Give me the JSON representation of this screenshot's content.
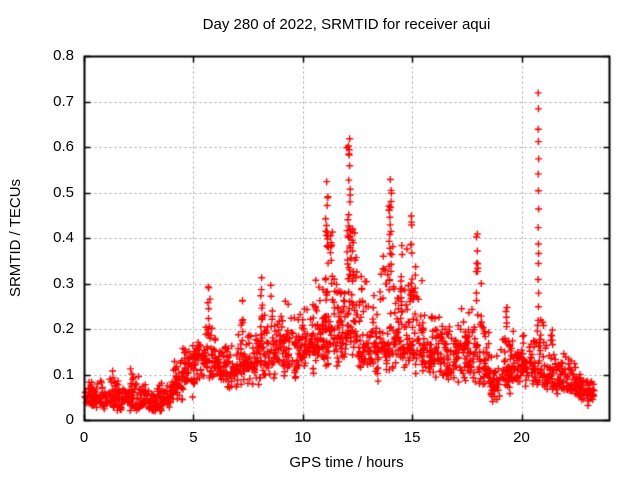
{
  "chart_data": {
    "type": "scatter",
    "title": "Day 280 of 2022, SRMTID for receiver aqui",
    "xlabel": "GPS time / hours",
    "ylabel": "SRMTID / TECUs",
    "xlim": [
      0,
      24
    ],
    "ylim": [
      0,
      0.8
    ],
    "xticks": [
      [
        0,
        "0"
      ],
      [
        5,
        "5"
      ],
      [
        10,
        "10"
      ],
      [
        15,
        "15"
      ],
      [
        20,
        "20"
      ]
    ],
    "yticks": [
      [
        0,
        "0"
      ],
      [
        0.1,
        "0.1"
      ],
      [
        0.2,
        "0.2"
      ],
      [
        0.3,
        "0.3"
      ],
      [
        0.4,
        "0.4"
      ],
      [
        0.5,
        "0.5"
      ],
      [
        0.6,
        "0.6"
      ],
      [
        0.7,
        "0.7"
      ],
      [
        0.8,
        "0.8"
      ]
    ],
    "grid": true,
    "legend": "none",
    "marker": "plus",
    "colors": {
      "marker": "#ff0000",
      "grid": "#a0a0a0",
      "frame": "#000000",
      "text": "#000000",
      "background": "#ffffff"
    },
    "scatter_model": {
      "bands": [
        [
          0.0,
          0.5,
          40,
          0.025,
          0.1,
          0.055
        ],
        [
          0.5,
          1.0,
          40,
          0.02,
          0.09,
          0.05
        ],
        [
          1.0,
          1.5,
          40,
          0.025,
          0.125,
          0.06
        ],
        [
          1.5,
          2.0,
          40,
          0.02,
          0.1,
          0.05
        ],
        [
          2.0,
          2.5,
          40,
          0.02,
          0.12,
          0.055
        ],
        [
          2.5,
          3.0,
          40,
          0.02,
          0.09,
          0.045
        ],
        [
          3.0,
          3.5,
          38,
          0.015,
          0.08,
          0.04
        ],
        [
          3.5,
          4.0,
          38,
          0.015,
          0.09,
          0.045
        ],
        [
          4.0,
          4.5,
          40,
          0.03,
          0.14,
          0.08
        ],
        [
          4.5,
          5.0,
          40,
          0.05,
          0.17,
          0.12
        ],
        [
          5.0,
          5.5,
          42,
          0.07,
          0.19,
          0.13
        ],
        [
          5.5,
          6.0,
          42,
          0.08,
          0.22,
          0.14
        ],
        [
          6.0,
          6.5,
          40,
          0.07,
          0.18,
          0.12
        ],
        [
          6.5,
          7.0,
          40,
          0.06,
          0.17,
          0.11
        ],
        [
          7.0,
          7.5,
          40,
          0.07,
          0.2,
          0.13
        ],
        [
          7.5,
          8.0,
          40,
          0.07,
          0.21,
          0.13
        ],
        [
          8.0,
          8.5,
          42,
          0.08,
          0.24,
          0.15
        ],
        [
          8.5,
          9.0,
          42,
          0.08,
          0.26,
          0.15
        ],
        [
          9.0,
          9.5,
          40,
          0.08,
          0.28,
          0.16
        ],
        [
          9.5,
          10.0,
          40,
          0.08,
          0.25,
          0.15
        ],
        [
          10.0,
          10.5,
          40,
          0.09,
          0.27,
          0.16
        ],
        [
          10.5,
          11.0,
          44,
          0.1,
          0.33,
          0.18
        ],
        [
          11.0,
          11.5,
          46,
          0.1,
          0.4,
          0.2
        ],
        [
          11.5,
          12.0,
          44,
          0.1,
          0.38,
          0.19
        ],
        [
          12.0,
          12.5,
          50,
          0.12,
          0.45,
          0.22
        ],
        [
          12.5,
          13.0,
          44,
          0.1,
          0.35,
          0.17
        ],
        [
          13.0,
          13.5,
          40,
          0.08,
          0.3,
          0.15
        ],
        [
          13.5,
          14.0,
          44,
          0.1,
          0.38,
          0.17
        ],
        [
          14.0,
          14.5,
          46,
          0.1,
          0.42,
          0.19
        ],
        [
          14.5,
          15.0,
          44,
          0.1,
          0.38,
          0.17
        ],
        [
          15.0,
          15.5,
          40,
          0.1,
          0.33,
          0.16
        ],
        [
          15.5,
          16.0,
          40,
          0.08,
          0.25,
          0.14
        ],
        [
          16.0,
          16.5,
          40,
          0.08,
          0.25,
          0.15
        ],
        [
          16.5,
          17.0,
          40,
          0.08,
          0.22,
          0.13
        ],
        [
          17.0,
          17.5,
          40,
          0.08,
          0.25,
          0.14
        ],
        [
          17.5,
          18.0,
          40,
          0.08,
          0.28,
          0.14
        ],
        [
          18.0,
          18.5,
          40,
          0.07,
          0.22,
          0.12
        ],
        [
          18.5,
          19.0,
          40,
          0.03,
          0.15,
          0.08
        ],
        [
          19.0,
          19.5,
          40,
          0.05,
          0.2,
          0.11
        ],
        [
          19.5,
          20.0,
          40,
          0.06,
          0.2,
          0.11
        ],
        [
          20.0,
          20.5,
          40,
          0.07,
          0.22,
          0.12
        ],
        [
          20.5,
          21.0,
          42,
          0.07,
          0.24,
          0.12
        ],
        [
          21.0,
          21.5,
          40,
          0.06,
          0.19,
          0.1
        ],
        [
          21.5,
          22.0,
          40,
          0.05,
          0.16,
          0.09
        ],
        [
          22.0,
          22.5,
          40,
          0.05,
          0.14,
          0.08
        ],
        [
          22.5,
          23.0,
          40,
          0.04,
          0.12,
          0.07
        ],
        [
          23.0,
          23.3,
          24,
          0.03,
          0.1,
          0.06
        ]
      ],
      "spikes": [
        [
          5.68,
          0.06,
          10,
          0.18,
          0.335
        ],
        [
          7.2,
          0.05,
          7,
          0.18,
          0.275
        ],
        [
          8.1,
          0.05,
          8,
          0.2,
          0.315
        ],
        [
          8.55,
          0.04,
          5,
          0.22,
          0.3
        ],
        [
          11.08,
          0.07,
          16,
          0.28,
          0.5
        ],
        [
          11.3,
          0.05,
          8,
          0.25,
          0.42
        ],
        [
          12.07,
          0.08,
          26,
          0.3,
          0.62
        ],
        [
          12.25,
          0.05,
          8,
          0.25,
          0.45
        ],
        [
          13.98,
          0.07,
          20,
          0.28,
          0.53
        ],
        [
          14.5,
          0.04,
          6,
          0.25,
          0.4
        ],
        [
          14.95,
          0.05,
          12,
          0.26,
          0.47
        ],
        [
          15.1,
          0.04,
          5,
          0.22,
          0.35
        ],
        [
          17.95,
          0.05,
          10,
          0.24,
          0.42
        ],
        [
          18.15,
          0.04,
          4,
          0.2,
          0.32
        ],
        [
          19.3,
          0.04,
          6,
          0.17,
          0.27
        ],
        [
          21.35,
          0.04,
          5,
          0.15,
          0.22
        ]
      ],
      "outliers": [
        [
          20.74,
          0.72
        ],
        [
          20.75,
          0.685
        ],
        [
          20.74,
          0.64
        ],
        [
          20.75,
          0.613
        ],
        [
          20.76,
          0.575
        ],
        [
          20.74,
          0.542
        ],
        [
          20.75,
          0.505
        ],
        [
          20.76,
          0.465
        ],
        [
          20.74,
          0.424
        ],
        [
          20.75,
          0.388
        ],
        [
          20.76,
          0.367
        ],
        [
          20.75,
          0.345
        ],
        [
          20.74,
          0.31
        ],
        [
          20.76,
          0.28
        ],
        [
          20.75,
          0.25
        ],
        [
          20.74,
          0.22
        ],
        [
          11.07,
          0.525
        ]
      ]
    }
  }
}
